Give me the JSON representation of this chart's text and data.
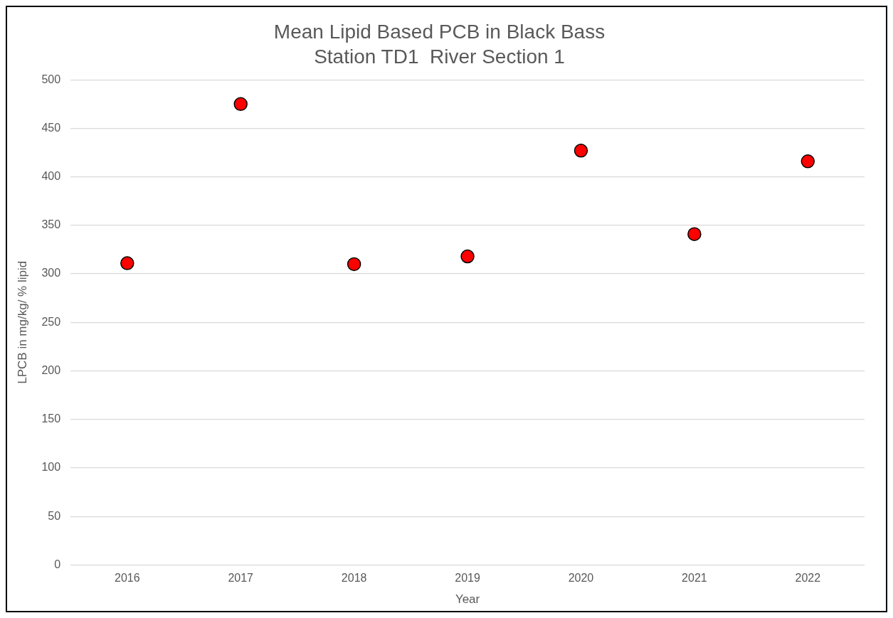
{
  "chart_data": {
    "type": "scatter",
    "title": "Mean Lipid Based PCB in Black Bass",
    "subtitle": "Station TD1  River Section 1",
    "xlabel": "Year",
    "ylabel": "LPCB in mg/kg/ % lipid",
    "categories": [
      "2016",
      "2017",
      "2018",
      "2019",
      "2020",
      "2021",
      "2022"
    ],
    "series": [
      {
        "color": "#ff0000",
        "values": [
          311,
          475,
          310,
          318,
          427,
          341,
          416
        ]
      }
    ],
    "ylim": [
      0,
      500
    ],
    "yticks": [
      0,
      50,
      100,
      150,
      200,
      250,
      300,
      350,
      400,
      450,
      500
    ],
    "grid": "y",
    "legend": false,
    "marker": "circle"
  }
}
